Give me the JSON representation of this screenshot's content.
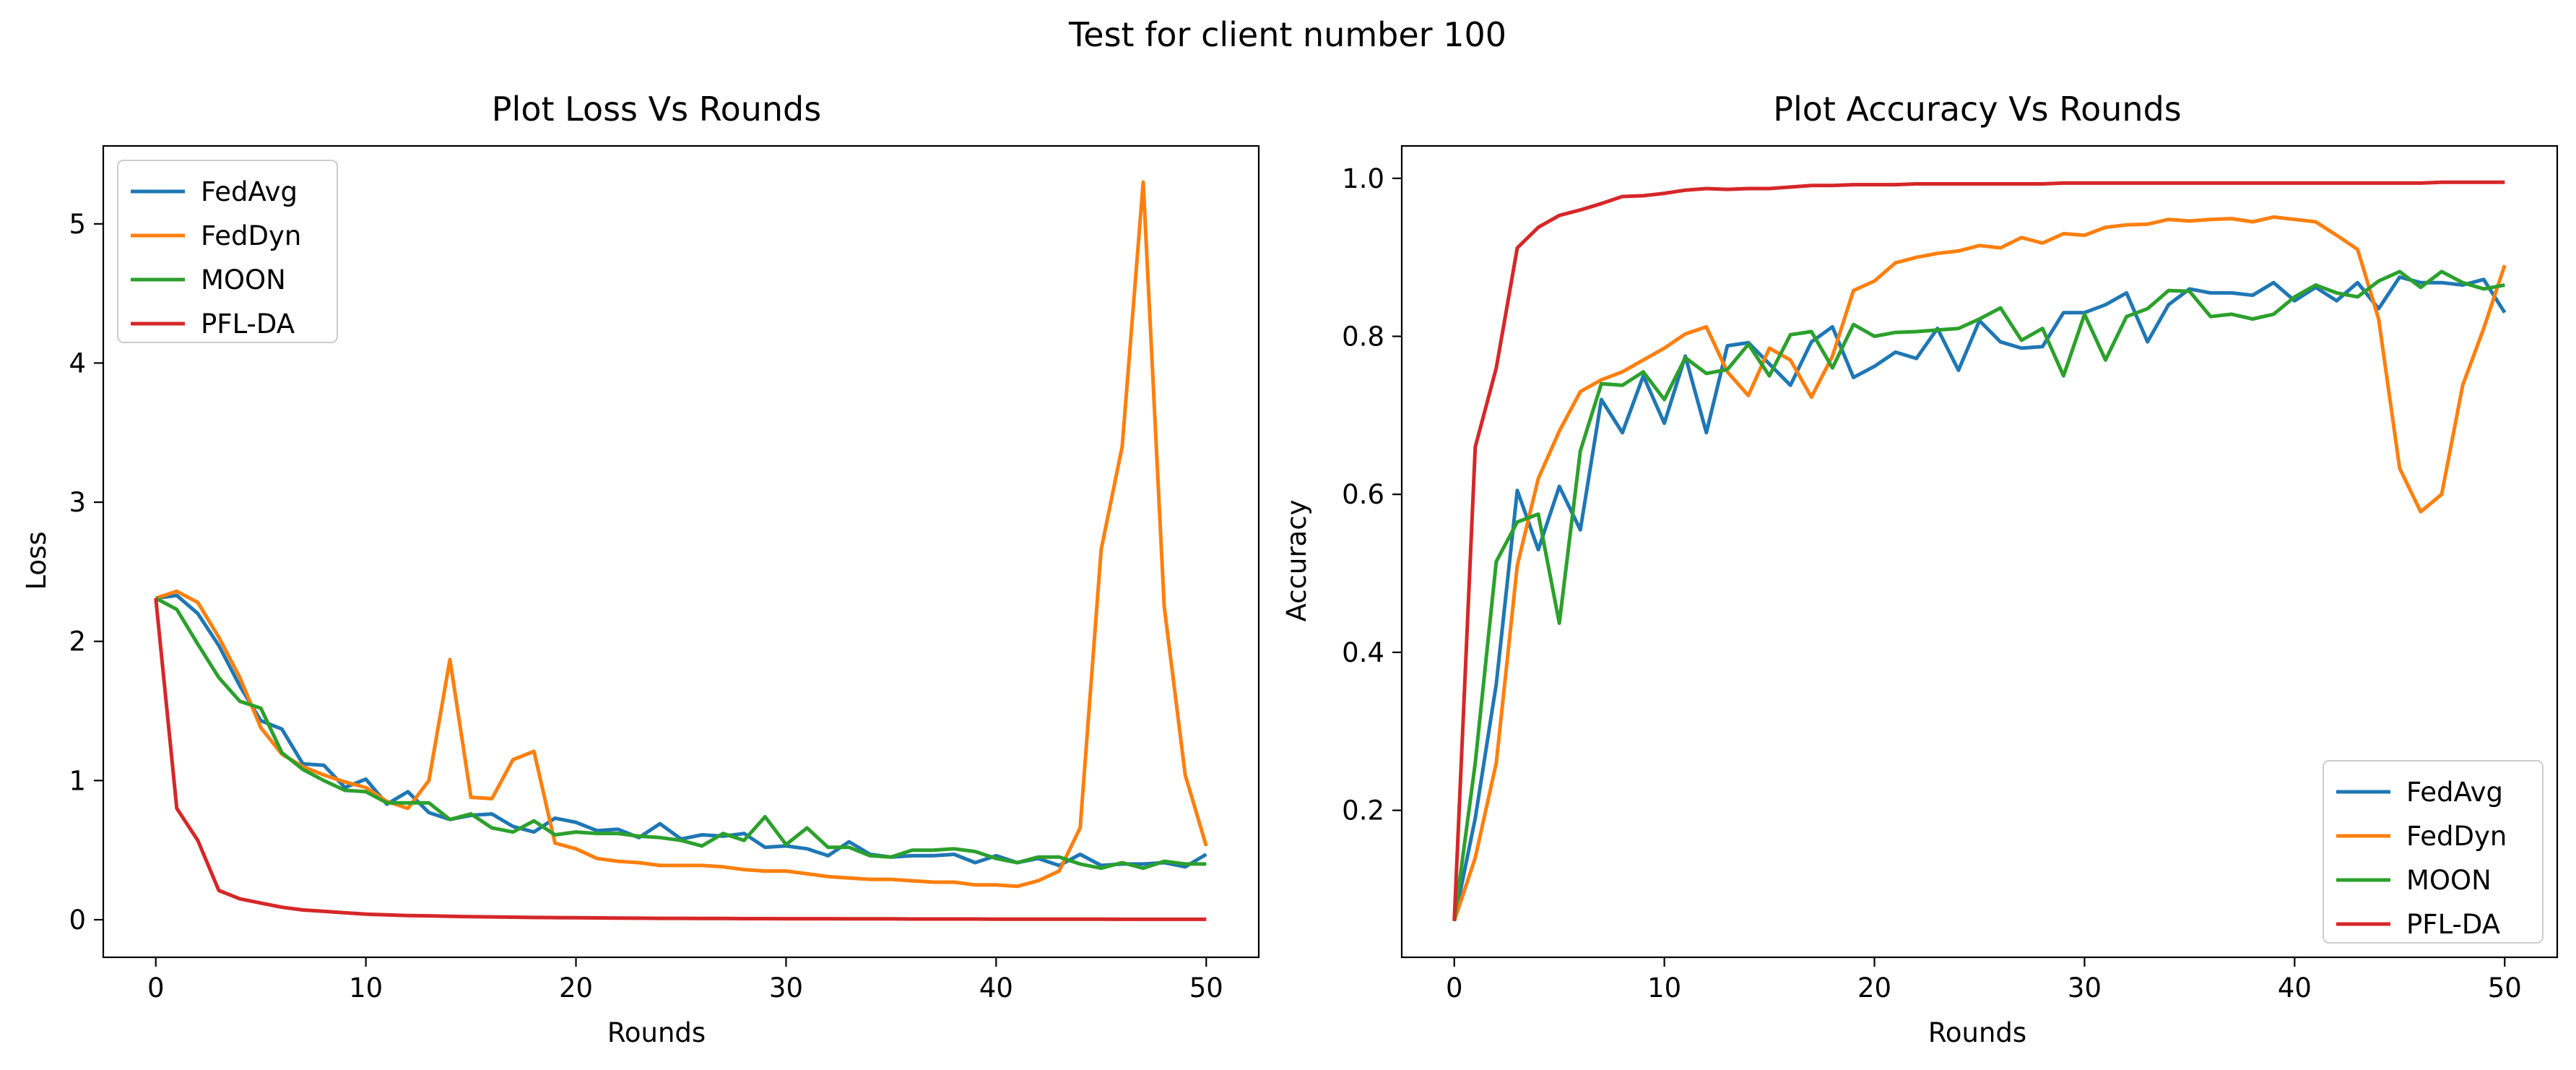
{
  "figure": {
    "suptitle": "Test for client number 100"
  },
  "chart_data": [
    {
      "type": "line",
      "title": "Plot Loss Vs Rounds",
      "xlabel": "Rounds",
      "ylabel": "Loss",
      "xlim": [
        -2.5,
        52.5
      ],
      "ylim": [
        -0.27,
        5.56
      ],
      "xticks": [
        0,
        10,
        20,
        30,
        40,
        50
      ],
      "yticks": [
        0,
        1,
        2,
        3,
        4,
        5
      ],
      "grid": false,
      "legend_position": "top-left",
      "x": [
        0,
        1,
        2,
        3,
        4,
        5,
        6,
        7,
        8,
        9,
        10,
        11,
        12,
        13,
        14,
        15,
        16,
        17,
        18,
        19,
        20,
        21,
        22,
        23,
        24,
        25,
        26,
        27,
        28,
        29,
        30,
        31,
        32,
        33,
        34,
        35,
        36,
        37,
        38,
        39,
        40,
        41,
        42,
        43,
        44,
        45,
        46,
        47,
        48,
        49,
        50
      ],
      "series": [
        {
          "name": "FedAvg",
          "color": "#1f77b4",
          "values": [
            2.31,
            2.33,
            2.2,
            1.97,
            1.68,
            1.43,
            1.37,
            1.12,
            1.11,
            0.95,
            1.01,
            0.83,
            0.92,
            0.77,
            0.72,
            0.75,
            0.76,
            0.67,
            0.63,
            0.73,
            0.7,
            0.64,
            0.65,
            0.59,
            0.69,
            0.58,
            0.61,
            0.6,
            0.62,
            0.52,
            0.53,
            0.51,
            0.46,
            0.56,
            0.47,
            0.45,
            0.46,
            0.46,
            0.47,
            0.41,
            0.46,
            0.41,
            0.44,
            0.39,
            0.47,
            0.39,
            0.4,
            0.4,
            0.41,
            0.38,
            0.47
          ]
        },
        {
          "name": "FedDyn",
          "color": "#ff7f0e",
          "values": [
            2.31,
            2.36,
            2.28,
            2.03,
            1.74,
            1.38,
            1.19,
            1.1,
            1.04,
            0.99,
            0.95,
            0.85,
            0.8,
            1.0,
            1.87,
            0.88,
            0.87,
            1.15,
            1.21,
            0.55,
            0.51,
            0.44,
            0.42,
            0.41,
            0.39,
            0.39,
            0.39,
            0.38,
            0.36,
            0.35,
            0.35,
            0.33,
            0.31,
            0.3,
            0.29,
            0.29,
            0.28,
            0.27,
            0.27,
            0.25,
            0.25,
            0.24,
            0.28,
            0.35,
            0.66,
            2.66,
            3.4,
            5.3,
            2.25,
            1.04,
            0.53
          ]
        },
        {
          "name": "MOON",
          "color": "#2ca02c",
          "values": [
            2.31,
            2.23,
            1.98,
            1.74,
            1.57,
            1.52,
            1.2,
            1.08,
            1.0,
            0.93,
            0.92,
            0.84,
            0.84,
            0.84,
            0.72,
            0.76,
            0.66,
            0.63,
            0.71,
            0.61,
            0.63,
            0.62,
            0.62,
            0.6,
            0.59,
            0.57,
            0.53,
            0.62,
            0.57,
            0.74,
            0.54,
            0.66,
            0.52,
            0.52,
            0.46,
            0.45,
            0.5,
            0.5,
            0.51,
            0.49,
            0.44,
            0.41,
            0.45,
            0.45,
            0.4,
            0.37,
            0.41,
            0.37,
            0.42,
            0.4,
            0.4
          ]
        },
        {
          "name": "PFL-DA",
          "color": "#d62728",
          "values": [
            2.31,
            0.8,
            0.57,
            0.21,
            0.15,
            0.12,
            0.09,
            0.07,
            0.06,
            0.05,
            0.04,
            0.035,
            0.03,
            0.028,
            0.025,
            0.022,
            0.02,
            0.018,
            0.016,
            0.015,
            0.014,
            0.013,
            0.012,
            0.011,
            0.01,
            0.01,
            0.009,
            0.009,
            0.008,
            0.008,
            0.007,
            0.007,
            0.007,
            0.006,
            0.006,
            0.006,
            0.005,
            0.005,
            0.005,
            0.005,
            0.004,
            0.004,
            0.004,
            0.004,
            0.004,
            0.004,
            0.003,
            0.003,
            0.003,
            0.003,
            0.003
          ]
        }
      ]
    },
    {
      "type": "line",
      "title": "Plot Accuracy Vs Rounds",
      "xlabel": "Rounds",
      "ylabel": "Accuracy",
      "xlim": [
        -2.5,
        52.5
      ],
      "ylim": [
        0.014,
        1.041
      ],
      "xticks": [
        0,
        10,
        20,
        30,
        40,
        50
      ],
      "yticks": [
        0.2,
        0.4,
        0.6,
        0.8,
        1.0
      ],
      "ytick_labels": [
        "0.2",
        "0.4",
        "0.6",
        "0.8",
        "1.0"
      ],
      "grid": false,
      "legend_position": "bottom-right",
      "x": [
        0,
        1,
        2,
        3,
        4,
        5,
        6,
        7,
        8,
        9,
        10,
        11,
        12,
        13,
        14,
        15,
        16,
        17,
        18,
        19,
        20,
        21,
        22,
        23,
        24,
        25,
        26,
        27,
        28,
        29,
        30,
        31,
        32,
        33,
        34,
        35,
        36,
        37,
        38,
        39,
        40,
        41,
        42,
        43,
        44,
        45,
        46,
        47,
        48,
        49,
        50
      ],
      "series": [
        {
          "name": "FedAvg",
          "color": "#1f77b4",
          "values": [
            0.06,
            0.19,
            0.36,
            0.605,
            0.53,
            0.61,
            0.555,
            0.72,
            0.678,
            0.75,
            0.69,
            0.775,
            0.678,
            0.788,
            0.792,
            0.765,
            0.738,
            0.793,
            0.812,
            0.748,
            0.762,
            0.78,
            0.772,
            0.81,
            0.757,
            0.82,
            0.793,
            0.785,
            0.787,
            0.83,
            0.83,
            0.84,
            0.855,
            0.793,
            0.84,
            0.86,
            0.855,
            0.855,
            0.852,
            0.868,
            0.845,
            0.862,
            0.845,
            0.868,
            0.835,
            0.875,
            0.868,
            0.868,
            0.865,
            0.872,
            0.83
          ]
        },
        {
          "name": "FedDyn",
          "color": "#ff7f0e",
          "values": [
            0.06,
            0.14,
            0.26,
            0.51,
            0.62,
            0.68,
            0.73,
            0.745,
            0.755,
            0.77,
            0.785,
            0.803,
            0.812,
            0.755,
            0.725,
            0.785,
            0.77,
            0.723,
            0.775,
            0.858,
            0.87,
            0.893,
            0.9,
            0.905,
            0.908,
            0.915,
            0.912,
            0.925,
            0.918,
            0.93,
            0.928,
            0.938,
            0.941,
            0.942,
            0.948,
            0.946,
            0.948,
            0.949,
            0.945,
            0.951,
            0.948,
            0.945,
            0.928,
            0.91,
            0.822,
            0.633,
            0.578,
            0.6,
            0.738,
            0.81,
            0.89
          ]
        },
        {
          "name": "MOON",
          "color": "#2ca02c",
          "values": [
            0.06,
            0.26,
            0.515,
            0.565,
            0.575,
            0.437,
            0.655,
            0.74,
            0.738,
            0.755,
            0.72,
            0.773,
            0.753,
            0.758,
            0.79,
            0.75,
            0.802,
            0.806,
            0.76,
            0.815,
            0.8,
            0.805,
            0.806,
            0.808,
            0.81,
            0.822,
            0.836,
            0.795,
            0.81,
            0.75,
            0.828,
            0.77,
            0.825,
            0.835,
            0.858,
            0.857,
            0.825,
            0.828,
            0.822,
            0.828,
            0.85,
            0.865,
            0.855,
            0.85,
            0.87,
            0.882,
            0.862,
            0.882,
            0.868,
            0.86,
            0.865
          ]
        },
        {
          "name": "PFL-DA",
          "color": "#d62728",
          "values": [
            0.06,
            0.66,
            0.76,
            0.912,
            0.938,
            0.953,
            0.96,
            0.968,
            0.977,
            0.978,
            0.981,
            0.985,
            0.987,
            0.986,
            0.987,
            0.987,
            0.989,
            0.991,
            0.991,
            0.992,
            0.992,
            0.992,
            0.993,
            0.993,
            0.993,
            0.993,
            0.993,
            0.993,
            0.993,
            0.994,
            0.994,
            0.994,
            0.994,
            0.994,
            0.994,
            0.994,
            0.994,
            0.994,
            0.994,
            0.994,
            0.994,
            0.994,
            0.994,
            0.994,
            0.994,
            0.994,
            0.994,
            0.995,
            0.995,
            0.995,
            0.995
          ]
        }
      ]
    }
  ]
}
